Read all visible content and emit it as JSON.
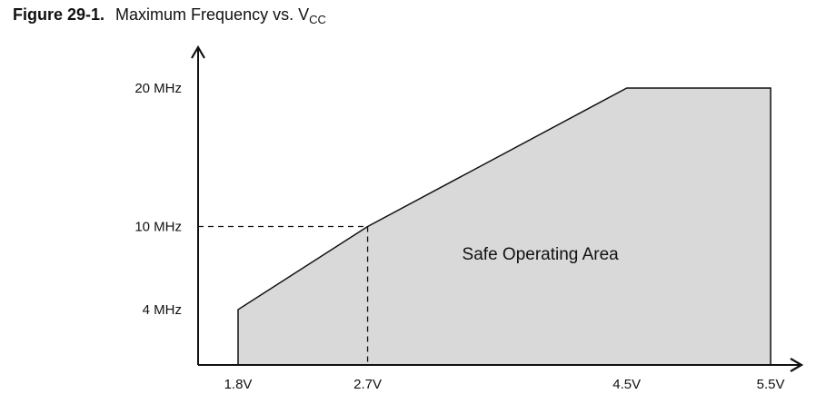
{
  "figure": {
    "number": "Figure 29-1.",
    "title_main": "Maximum Frequency vs. V",
    "title_sub": "CC"
  },
  "chart_data": {
    "type": "area",
    "title": "Maximum Frequency vs. VCC",
    "x_ticks": [
      {
        "value": 1.8,
        "label": "1.8V"
      },
      {
        "value": 2.7,
        "label": "2.7V"
      },
      {
        "value": 4.5,
        "label": "4.5V"
      },
      {
        "value": 5.5,
        "label": "5.5V"
      }
    ],
    "y_ticks": [
      {
        "value": 4,
        "label": "4 MHz"
      },
      {
        "value": 10,
        "label": "10 MHz"
      },
      {
        "value": 20,
        "label": "20 MHz"
      }
    ],
    "series": [
      {
        "x": [
          1.8,
          1.8,
          2.7,
          4.5,
          5.5,
          5.5
        ],
        "y": [
          0,
          4,
          10,
          20,
          20,
          0
        ]
      }
    ],
    "guide": {
      "x": 2.7,
      "y": 10
    },
    "annotation": "Safe Operating Area",
    "annotation_at": {
      "x": 3.9,
      "y": 8
    },
    "grid": false,
    "fill_color": "#d9d9d9",
    "line_color": "#111111"
  }
}
